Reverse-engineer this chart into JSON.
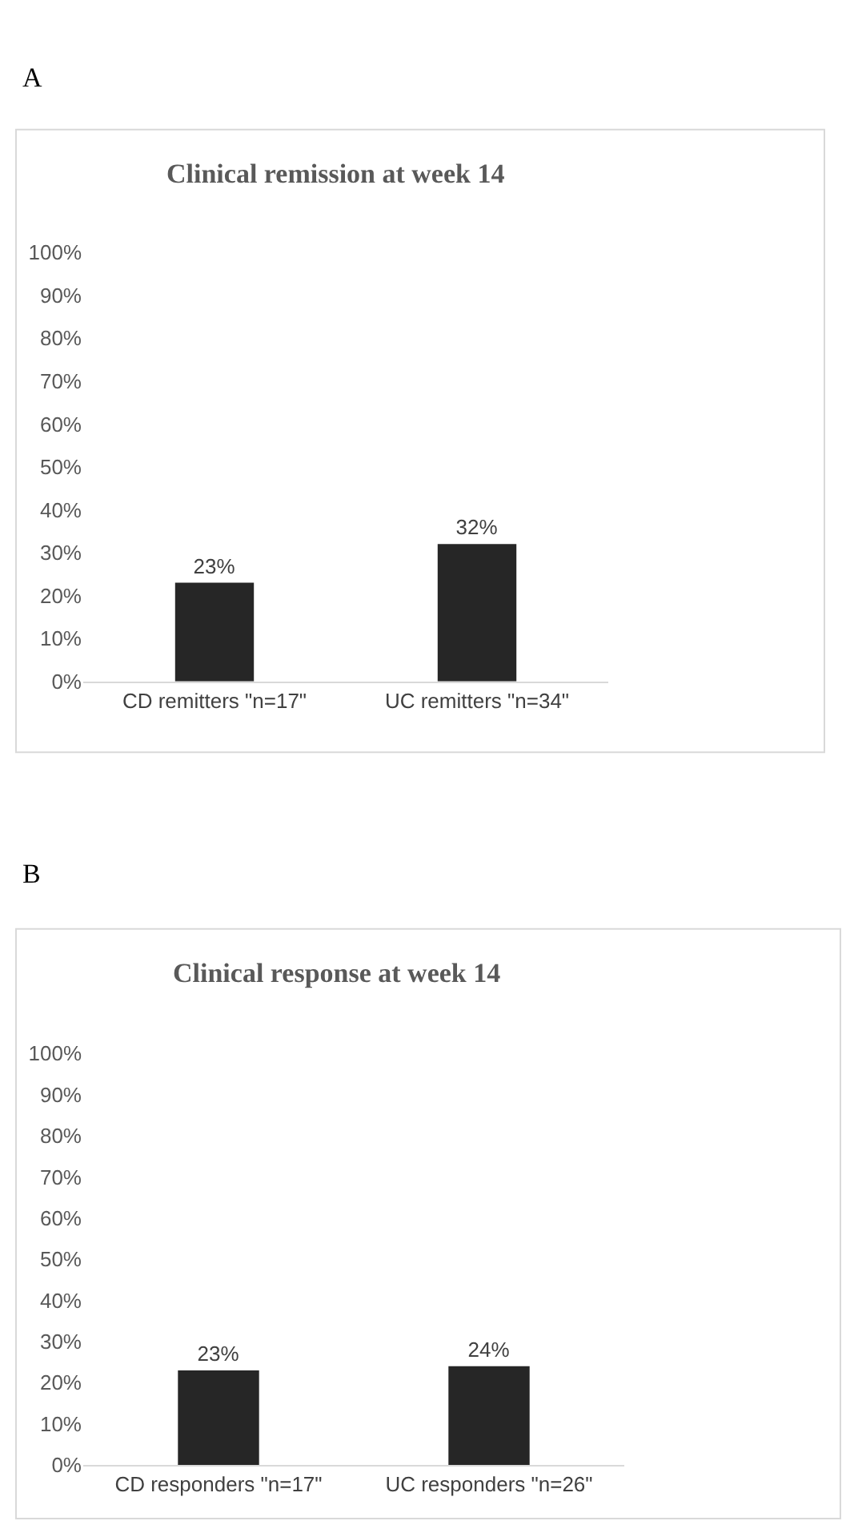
{
  "chart_data": [
    {
      "type": "bar",
      "title": "Clinical remission at week 14",
      "annotations": [
        "A"
      ],
      "categories": [
        "CD remitters \"n=17\"",
        "UC remitters \"n=34\""
      ],
      "values": [
        23,
        32
      ],
      "value_labels": [
        "23%",
        "32%"
      ],
      "color": "#262626",
      "ylim": [
        0,
        100
      ],
      "yticks": [
        {
          "value": 0,
          "label": "0%"
        },
        {
          "value": 10,
          "label": "10%"
        },
        {
          "value": 20,
          "label": "20%"
        },
        {
          "value": 30,
          "label": "30%"
        },
        {
          "value": 40,
          "label": "40%"
        },
        {
          "value": 50,
          "label": "50%"
        },
        {
          "value": 60,
          "label": "60%"
        },
        {
          "value": 70,
          "label": "70%"
        },
        {
          "value": 80,
          "label": "80%"
        },
        {
          "value": 90,
          "label": "90%"
        },
        {
          "value": 100,
          "label": "100%"
        }
      ],
      "grid": false
    },
    {
      "type": "bar",
      "title": "Clinical response at week 14",
      "annotations": [
        "B"
      ],
      "categories": [
        "CD responders \"n=17\"",
        "UC responders \"n=26\""
      ],
      "values": [
        23,
        24
      ],
      "value_labels": [
        "23%",
        "24%"
      ],
      "color": "#262626",
      "ylim": [
        0,
        100
      ],
      "yticks": [
        {
          "value": 0,
          "label": "0%"
        },
        {
          "value": 10,
          "label": "10%"
        },
        {
          "value": 20,
          "label": "20%"
        },
        {
          "value": 30,
          "label": "30%"
        },
        {
          "value": 40,
          "label": "40%"
        },
        {
          "value": 50,
          "label": "50%"
        },
        {
          "value": 60,
          "label": "60%"
        },
        {
          "value": 70,
          "label": "70%"
        },
        {
          "value": 80,
          "label": "80%"
        },
        {
          "value": 90,
          "label": "90%"
        },
        {
          "value": 100,
          "label": "100%"
        }
      ],
      "grid": false
    }
  ]
}
